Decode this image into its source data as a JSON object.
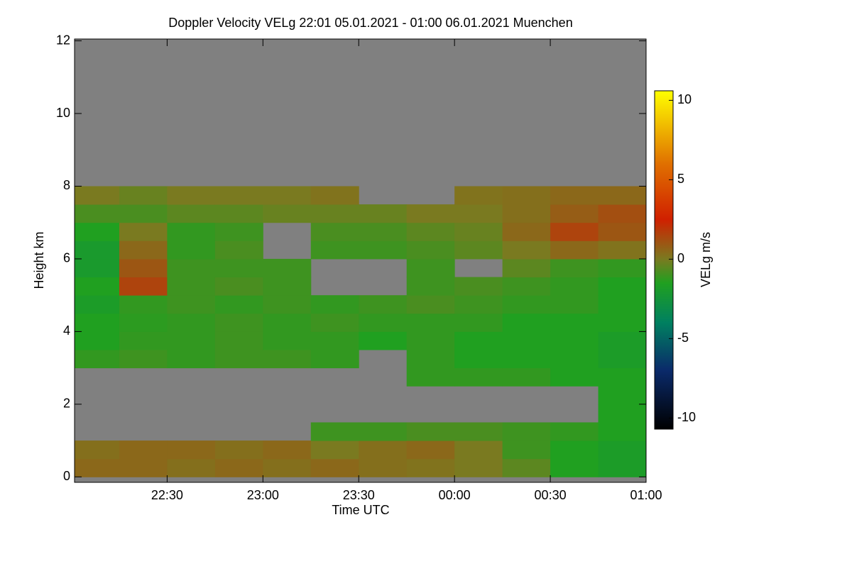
{
  "chart_data": {
    "type": "heatmap",
    "title": "Doppler Velocity VELg   22:01 05.01.2021 - 01:00 06.01.2021 Muenchen",
    "xlabel": "Time UTC",
    "ylabel": "Height km",
    "colorbar_label": "VELg m/s",
    "x": [
      22.125,
      22.375,
      22.625,
      22.875,
      23.125,
      23.375,
      23.625,
      23.875,
      24.125,
      24.375,
      24.625,
      24.875
    ],
    "y": [
      0.25,
      0.75,
      1.25,
      1.75,
      2.25,
      2.75,
      3.25,
      3.75,
      4.25,
      4.75,
      5.25,
      5.75,
      6.25,
      6.75,
      7.25,
      7.75,
      8.25,
      8.75,
      9.25,
      9.75,
      10.25,
      10.75,
      11.25,
      11.75
    ],
    "z": [
      [
        0.5,
        0.5,
        0.3,
        0.5,
        0.3,
        0.5,
        0.3,
        0.2,
        0,
        -0.5,
        -1.5,
        -1.8
      ],
      [
        0.3,
        0.5,
        0.5,
        0.3,
        0.5,
        0,
        0.3,
        0.5,
        0,
        -1,
        -1.5,
        -1.8
      ],
      [
        null,
        null,
        null,
        null,
        null,
        -1,
        -1,
        -0.8,
        -0.8,
        -1,
        -1.2,
        -1.5
      ],
      [
        null,
        null,
        null,
        null,
        null,
        null,
        null,
        null,
        null,
        null,
        null,
        -1.5
      ],
      [
        null,
        null,
        null,
        null,
        null,
        null,
        null,
        null,
        null,
        null,
        null,
        -1.5
      ],
      [
        null,
        null,
        null,
        null,
        null,
        null,
        null,
        -1.2,
        -1.2,
        -1.2,
        -1.5,
        -1.5
      ],
      [
        -1.2,
        -1,
        -1.2,
        -1,
        -1,
        -1.2,
        null,
        -1.2,
        -1.5,
        -1.5,
        -1.5,
        -1.8
      ],
      [
        -1.5,
        -1.2,
        -1.2,
        -1,
        -1.2,
        -1.2,
        -1.5,
        -1.2,
        -1.5,
        -1.5,
        -1.5,
        -1.8
      ],
      [
        -1.5,
        -1.3,
        -1.2,
        -1,
        -1.2,
        -1,
        -1.2,
        -1.2,
        -1.2,
        -1.5,
        -1.5,
        -1.5
      ],
      [
        -1.8,
        -1.2,
        -1,
        -1.2,
        -1,
        -1.2,
        -1,
        -0.8,
        -1,
        -1.2,
        -1.2,
        -1.5
      ],
      [
        -1.5,
        1.5,
        -1,
        -0.8,
        -1,
        null,
        null,
        -1,
        -0.8,
        -1,
        -1.2,
        -1.5
      ],
      [
        -2,
        1,
        -1,
        -1,
        -1,
        null,
        null,
        -1,
        null,
        -0.5,
        -1,
        -1.2
      ],
      [
        -2,
        0.5,
        -1.2,
        -0.8,
        null,
        -1,
        -1,
        -0.8,
        -0.5,
        0,
        0.5,
        0.2
      ],
      [
        -1.5,
        0,
        -1.2,
        -1,
        null,
        -0.8,
        -0.8,
        -0.5,
        -0.3,
        0.5,
        1.5,
        1
      ],
      [
        -0.8,
        -0.8,
        -0.5,
        -0.5,
        -0.3,
        -0.3,
        -0.3,
        0,
        0,
        0.3,
        0.8,
        1.2
      ],
      [
        0,
        -0.3,
        0,
        0,
        0,
        0.2,
        null,
        null,
        0.2,
        0.3,
        0.5,
        0.5
      ],
      [
        null,
        null,
        null,
        null,
        null,
        null,
        null,
        null,
        null,
        null,
        null,
        null
      ],
      [
        null,
        null,
        null,
        null,
        null,
        null,
        null,
        null,
        null,
        null,
        null,
        null
      ],
      [
        null,
        null,
        null,
        null,
        null,
        null,
        null,
        null,
        null,
        null,
        null,
        null
      ],
      [
        null,
        null,
        null,
        null,
        null,
        null,
        null,
        null,
        null,
        null,
        null,
        null
      ],
      [
        null,
        null,
        null,
        null,
        null,
        null,
        null,
        null,
        null,
        null,
        null,
        null
      ],
      [
        null,
        null,
        null,
        null,
        null,
        null,
        null,
        null,
        null,
        null,
        null,
        null
      ],
      [
        null,
        null,
        null,
        null,
        null,
        null,
        null,
        null,
        null,
        null,
        null,
        null
      ],
      [
        null,
        null,
        null,
        null,
        null,
        null,
        null,
        null,
        null,
        null,
        null,
        null
      ]
    ],
    "missing_color": "#808080",
    "colorscale": [
      [
        -10.7,
        "#000000"
      ],
      [
        -7,
        "#0a2a6a"
      ],
      [
        -4,
        "#008060"
      ],
      [
        -1.5,
        "#20a020"
      ],
      [
        0,
        "#7a7a20"
      ],
      [
        2.5,
        "#d02000"
      ],
      [
        6,
        "#e07000"
      ],
      [
        10.6,
        "#ffff00"
      ]
    ],
    "xlim": [
      22.0167,
      25.0
    ],
    "xticks": [
      {
        "value": 22.5,
        "label": "22:30"
      },
      {
        "value": 23,
        "label": "23:00"
      },
      {
        "value": 23.5,
        "label": "23:30"
      },
      {
        "value": 24,
        "label": "00:00"
      },
      {
        "value": 24.5,
        "label": "00:30"
      },
      {
        "value": 25,
        "label": "01:00"
      }
    ],
    "ylim": [
      -0.15,
      12.05
    ],
    "yticks": [
      0,
      2,
      4,
      6,
      8,
      10,
      12
    ],
    "clim": [
      -10.7,
      10.6
    ],
    "cticks": [
      -10,
      -5,
      0,
      5,
      10
    ]
  }
}
